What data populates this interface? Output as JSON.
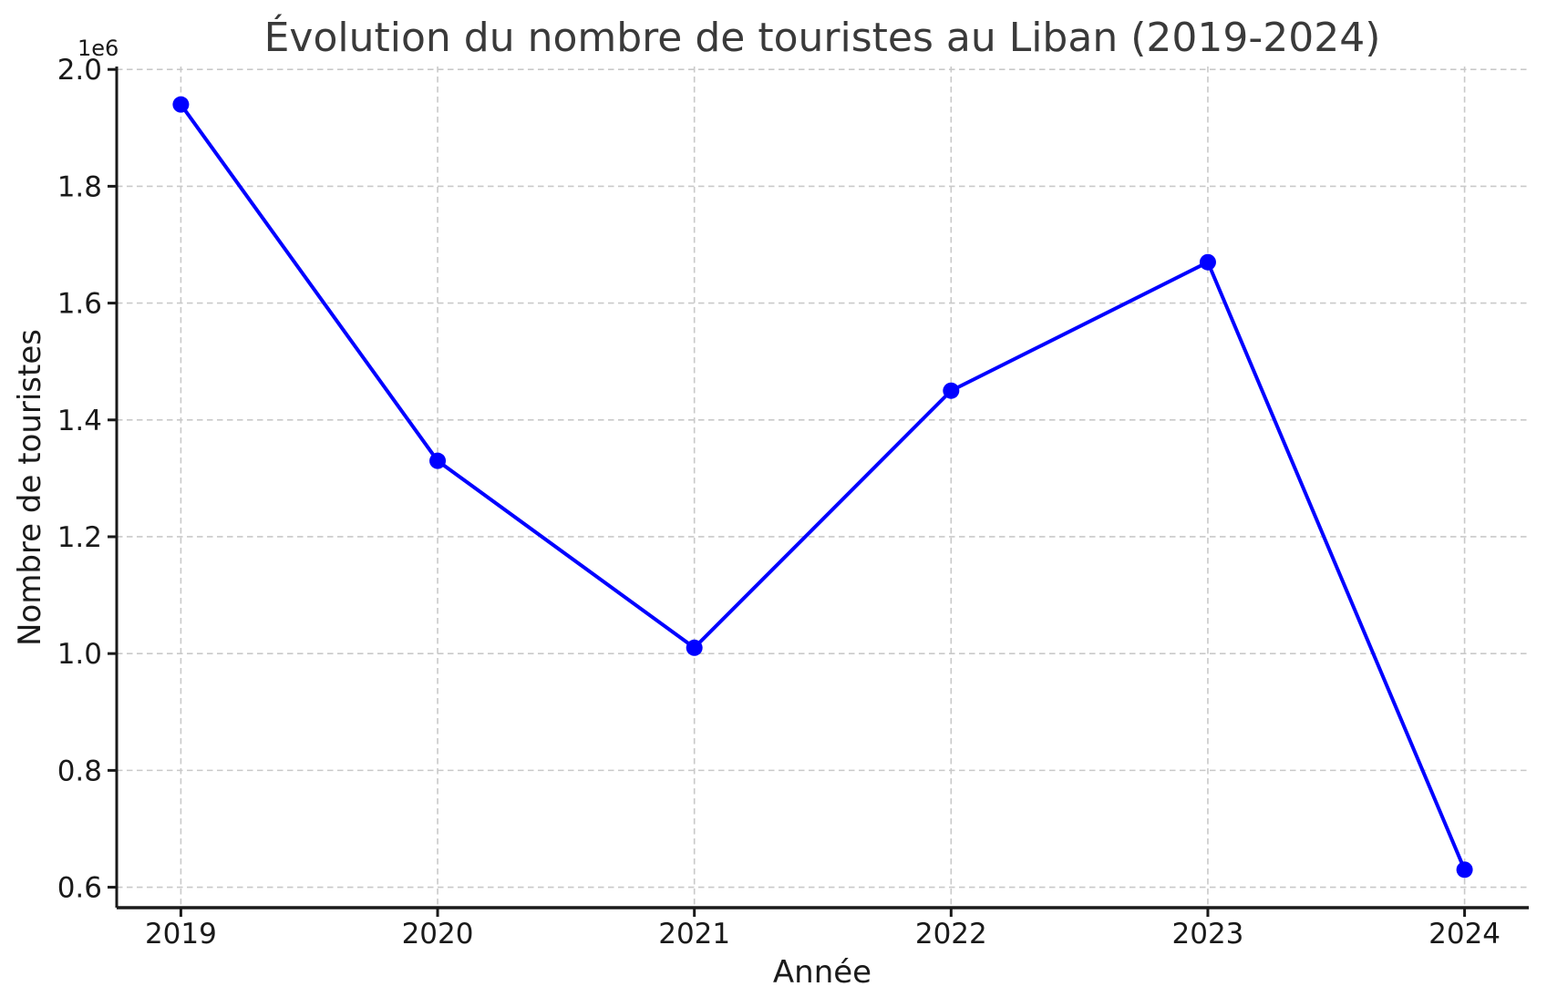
{
  "chart_data": {
    "type": "line",
    "title": "Évolution du nombre de touristes au Liban (2019-2024)",
    "xlabel": "Année",
    "ylabel": "Nombre de touristes",
    "x": [
      2019,
      2020,
      2021,
      2022,
      2023,
      2024
    ],
    "x_tick_labels": [
      "2019",
      "2020",
      "2021",
      "2022",
      "2023",
      "2024"
    ],
    "series": [
      {
        "name": "Nombre de touristes",
        "values": [
          1940000,
          1330000,
          1010000,
          1450000,
          1670000,
          630000
        ]
      }
    ],
    "y_ticks": [
      600000,
      800000,
      1000000,
      1200000,
      1400000,
      1600000,
      1800000,
      2000000
    ],
    "y_tick_labels": [
      "0.6",
      "0.8",
      "1.0",
      "1.2",
      "1.4",
      "1.6",
      "1.8",
      "2.0"
    ],
    "y_offset_text": "1e6",
    "xlim": [
      2018.75,
      2024.25
    ],
    "ylim": [
      565000,
      2005000
    ],
    "grid": true,
    "grid_style": "dashed",
    "legend_position": "none",
    "colors": {
      "line": "#0000ff",
      "marker": "#0000ff",
      "grid": "#c9c9c9",
      "spine": "#1a1a1a",
      "background": "#ffffff"
    }
  }
}
